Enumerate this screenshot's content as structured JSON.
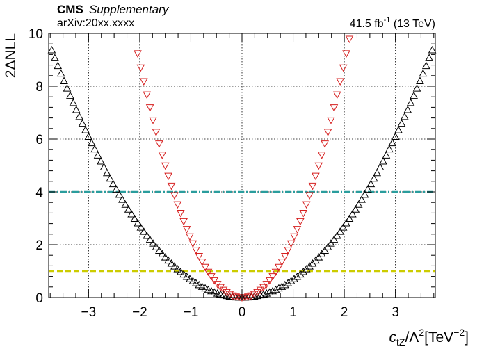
{
  "header": {
    "experiment": "CMS",
    "tag": "Supplementary",
    "arxiv": "arXiv:20xx.xxxx",
    "lumi_value": "41.5 fb",
    "lumi_exp": "-1",
    "energy": "(13 TeV)"
  },
  "chart_data": {
    "type": "scatter",
    "xlabel": {
      "var": "c",
      "var_sub": "tZ",
      "slash": "/Λ",
      "lambda_exp": "2",
      "unit_open": "[TeV",
      "unit_exp": "−2",
      "unit_close": "]"
    },
    "ylabel": "2ΔNLL",
    "xlim": [
      -3.78,
      3.78
    ],
    "ylim": [
      0,
      10
    ],
    "x_ticks": [
      -3,
      -2,
      -1,
      0,
      1,
      2,
      3
    ],
    "x_tick_labels": [
      "−3",
      "−2",
      "−1",
      "0",
      "1",
      "2",
      "3"
    ],
    "y_ticks": [
      0,
      2,
      4,
      6,
      8,
      10
    ],
    "y_tick_labels": [
      "0",
      "2",
      "4",
      "6",
      "8",
      "10"
    ],
    "grid": true,
    "hlines": [
      {
        "y": 4,
        "color": "#2a9d9d",
        "style": "dash-dot"
      },
      {
        "y": 1,
        "color": "#cccc00",
        "style": "dashed"
      }
    ],
    "series": [
      {
        "marker": "triangle-up",
        "color": "#000000",
        "a": 0.677,
        "xmin": -3.72,
        "xmax": 3.72,
        "step": 0.06
      },
      {
        "marker": "triangle-down",
        "color": "#d62020",
        "a": 2.22,
        "xmin": -2.04,
        "xmax": 2.1,
        "step": 0.06
      }
    ]
  }
}
